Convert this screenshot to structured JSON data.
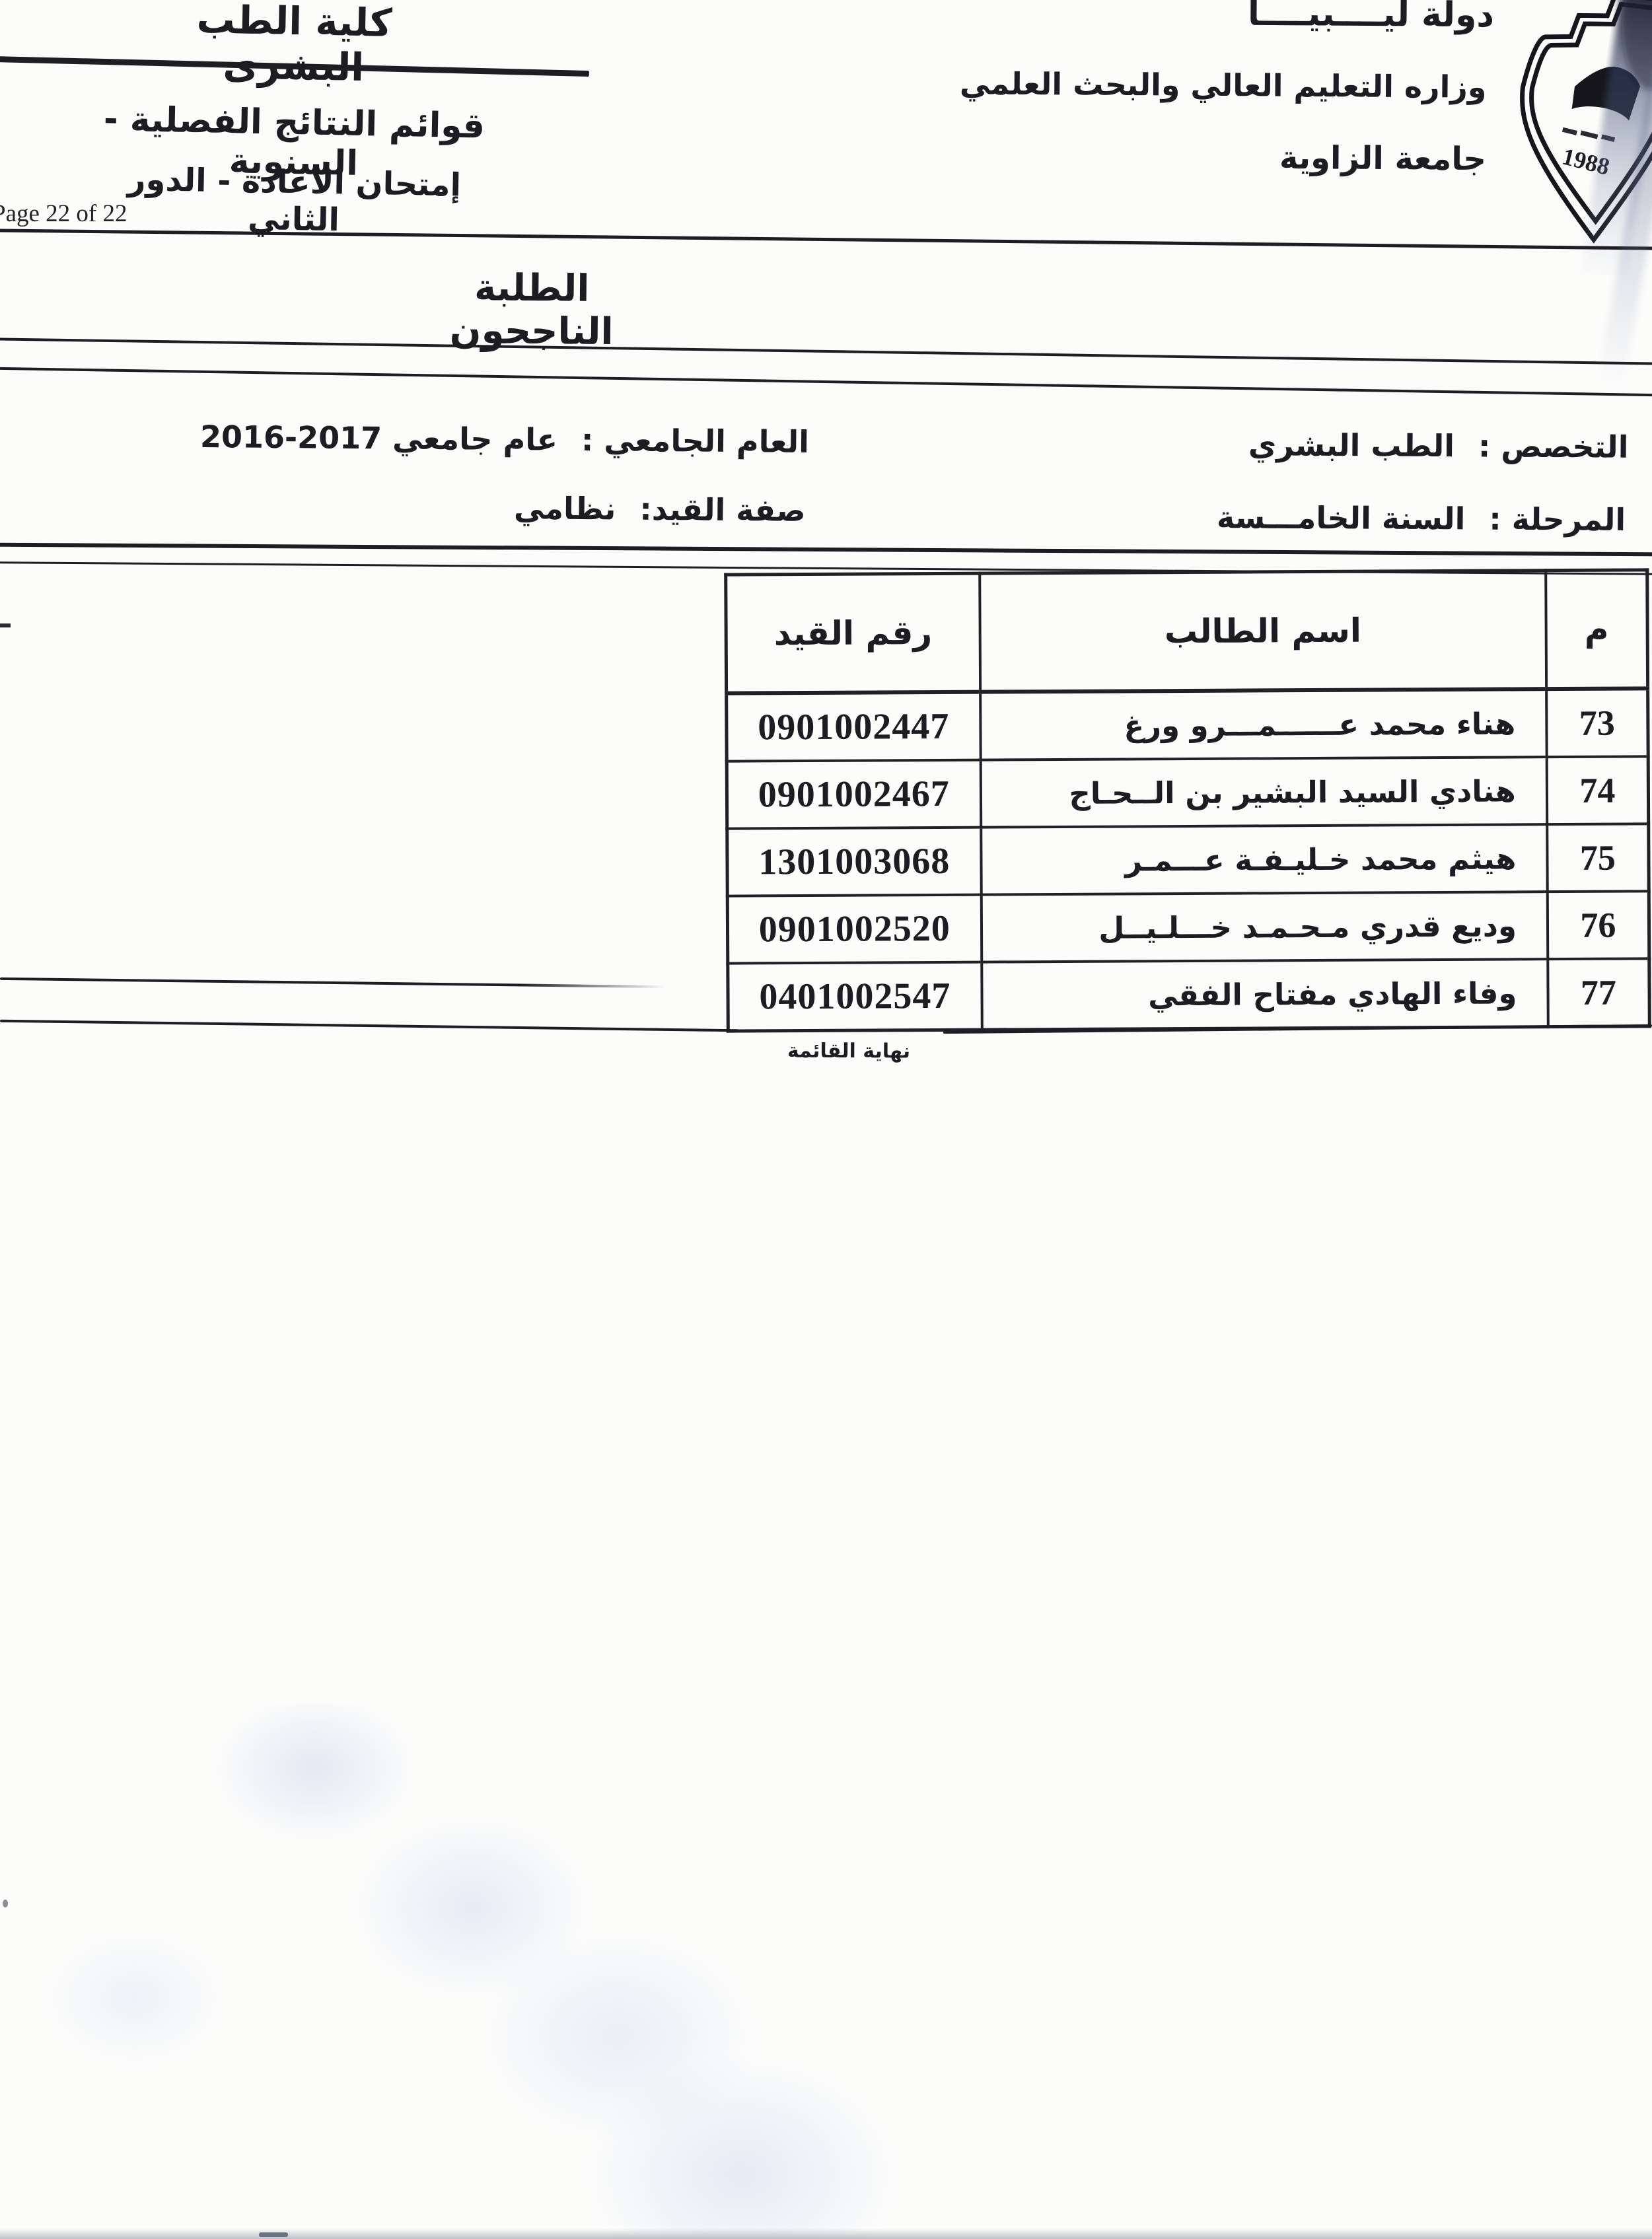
{
  "page": {
    "background": "#fcfcfb",
    "ink": "#1c1c22"
  },
  "header_right": {
    "state": "دولة ليــــبيــــا",
    "ministry": "وزاره التعليم العالي والبحث العلمي",
    "university": "جامعة الزاوية"
  },
  "logo": {
    "year": "1988"
  },
  "header_left": {
    "faculty": "كلية الطب البشرى",
    "subtitle1": "قوائم النتائج الفصلية - السنوية",
    "subtitle2": "إمتحان الاعادة - الدور الثاني",
    "page_number": "Page 22 of 22"
  },
  "title": "الطلبة الناجحون",
  "meta": {
    "specialization_label": "التخصص :",
    "specialization_value": "الطب البشري",
    "stage_label": "المرحلة :",
    "stage_value": "السنة الخامـــسة",
    "year_label": "العام الجامعي :",
    "year_value": "عام جامعي 2017-2016",
    "enrollment_label": "صفة القيد:",
    "enrollment_value": "نظامي"
  },
  "table": {
    "headers": {
      "serial": "م",
      "name": "اسم الطالب",
      "reg_no": "رقم القيد"
    },
    "rows": [
      {
        "serial": "73",
        "name": "هناء محمد عــــــمـــرو ورغ",
        "reg_no": "0901002447"
      },
      {
        "serial": "74",
        "name": "هنادي السيد البشير بن الــحـاج",
        "reg_no": "0901002467"
      },
      {
        "serial": "75",
        "name": "هيثم محمد خـليـفـة عـــمـر",
        "reg_no": "1301003068"
      },
      {
        "serial": "76",
        "name": "وديع قدري مـحـمـد خـــلـيــل",
        "reg_no": "0901002520"
      },
      {
        "serial": "77",
        "name": "وفاء الهادي مفتاح  الفقي",
        "reg_no": "0401002547"
      }
    ]
  },
  "footer": {
    "end_of_list": "نهاية القائمة"
  }
}
